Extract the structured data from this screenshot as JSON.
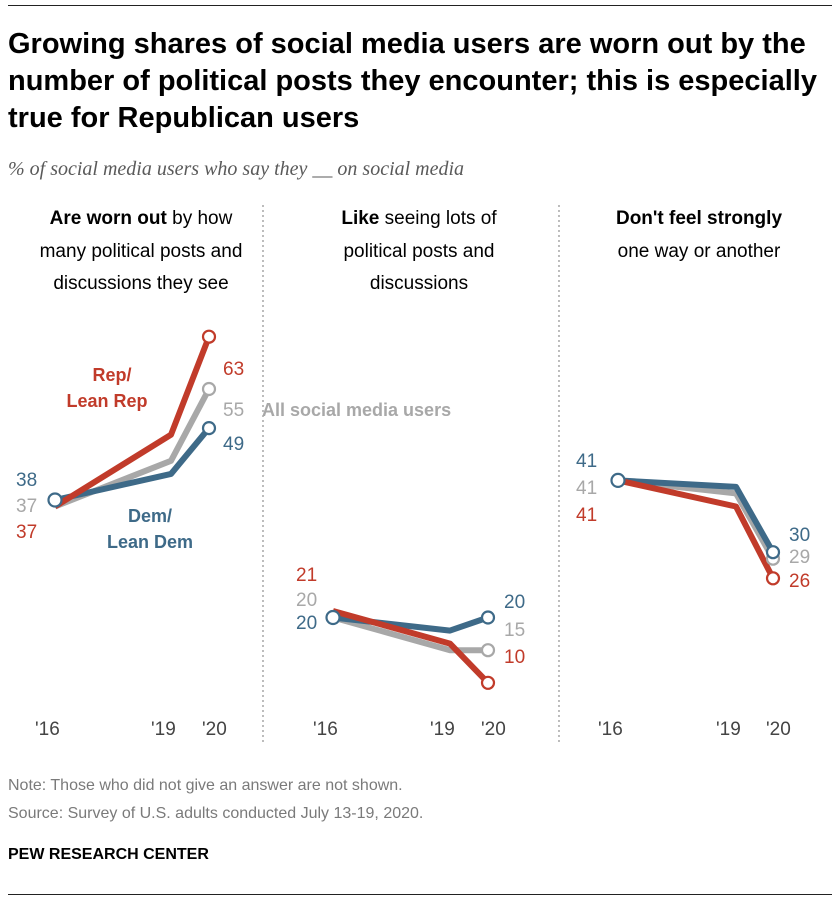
{
  "title": "Growing shares of social media users are worn out by the number of political posts they encounter; this is especially true for Republican users",
  "subtitle": "% of social media users who say they __ on social media",
  "note": "Note: Those who did not give an answer are not shown.",
  "source": "Source: Survey of U.S. adults conducted July 13-19, 2020.",
  "brand": "PEW RESEARCH CENTER",
  "colors": {
    "rep": "#c13b2a",
    "dem": "#3e6a88",
    "all": "#a8a8a8",
    "divider": "#999999"
  },
  "series_labels": {
    "rep": [
      "Rep/",
      "Lean Rep"
    ],
    "dem": [
      "Dem/",
      "Lean Dem"
    ],
    "all": "All social media users"
  },
  "chart_data": [
    {
      "type": "line",
      "heading_bold": "Are worn out",
      "heading_rest": " by how",
      "heading_lines": [
        "many political posts and",
        "discussions they see"
      ],
      "x": [
        "'16",
        "'19",
        "'20"
      ],
      "series": [
        {
          "name": "Rep/Lean Rep",
          "key": "rep",
          "values": [
            37,
            48,
            63
          ]
        },
        {
          "name": "All social media users",
          "key": "all",
          "values": [
            37,
            44,
            55
          ]
        },
        {
          "name": "Dem/Lean Dem",
          "key": "dem",
          "values": [
            38,
            42,
            49
          ]
        }
      ],
      "labels": {
        "start": {
          "dem": "38",
          "all": "37",
          "rep": "37"
        },
        "end": {
          "rep": "63",
          "all": "55",
          "dem": "49"
        }
      }
    },
    {
      "type": "line",
      "heading_bold": "Like",
      "heading_rest": " seeing lots of",
      "heading_lines": [
        "political posts and",
        "discussions"
      ],
      "x": [
        "'16",
        "'19",
        "'20"
      ],
      "series": [
        {
          "name": "Rep/Lean Rep",
          "key": "rep",
          "values": [
            21,
            16,
            10
          ]
        },
        {
          "name": "All social media users",
          "key": "all",
          "values": [
            20,
            15,
            15
          ]
        },
        {
          "name": "Dem/Lean Dem",
          "key": "dem",
          "values": [
            20,
            18,
            20
          ]
        }
      ],
      "labels": {
        "start": {
          "rep": "21",
          "all": "20",
          "dem": "20"
        },
        "end": {
          "dem": "20",
          "all": "15",
          "rep": "10"
        }
      }
    },
    {
      "type": "line",
      "heading_bold": "Don't feel strongly",
      "heading_rest": "",
      "heading_lines": [
        "one way or another"
      ],
      "x": [
        "'16",
        "'19",
        "'20"
      ],
      "series": [
        {
          "name": "Rep/Lean Rep",
          "key": "rep",
          "values": [
            41,
            37,
            26
          ]
        },
        {
          "name": "All social media users",
          "key": "all",
          "values": [
            41,
            39,
            29
          ]
        },
        {
          "name": "Dem/Lean Dem",
          "key": "dem",
          "values": [
            41,
            40,
            30
          ]
        }
      ],
      "labels": {
        "start": {
          "dem": "41",
          "all": "41",
          "rep": "41"
        },
        "end": {
          "dem": "30",
          "all": "29",
          "rep": "26"
        }
      }
    }
  ]
}
